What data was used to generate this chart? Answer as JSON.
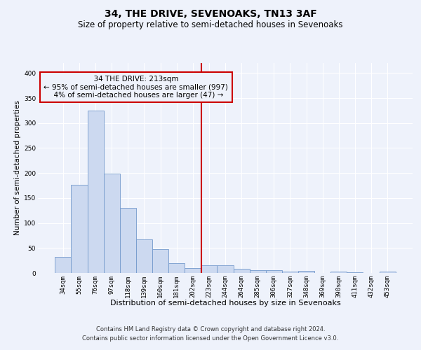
{
  "title": "34, THE DRIVE, SEVENOAKS, TN13 3AF",
  "subtitle": "Size of property relative to semi-detached houses in Sevenoaks",
  "xlabel": "Distribution of semi-detached houses by size in Sevenoaks",
  "ylabel": "Number of semi-detached properties",
  "bar_labels": [
    "34sqm",
    "55sqm",
    "76sqm",
    "97sqm",
    "118sqm",
    "139sqm",
    "160sqm",
    "181sqm",
    "202sqm",
    "223sqm",
    "244sqm",
    "264sqm",
    "285sqm",
    "306sqm",
    "327sqm",
    "348sqm",
    "369sqm",
    "390sqm",
    "411sqm",
    "432sqm",
    "453sqm"
  ],
  "bar_values": [
    32,
    177,
    325,
    199,
    130,
    67,
    48,
    20,
    10,
    15,
    15,
    9,
    6,
    5,
    3,
    4,
    0,
    3,
    2,
    0,
    3
  ],
  "bar_color": "#ccd9f0",
  "bar_edge_color": "#7399cc",
  "vline_pos": 8.52,
  "property_label": "34 THE DRIVE: 213sqm",
  "smaller_pct": "95%",
  "smaller_count": 997,
  "larger_pct": "4%",
  "larger_count": 47,
  "ylim_max": 420,
  "yticks": [
    0,
    50,
    100,
    150,
    200,
    250,
    300,
    350,
    400
  ],
  "footnote1": "Contains HM Land Registry data © Crown copyright and database right 2024.",
  "footnote2": "Contains public sector information licensed under the Open Government Licence v3.0.",
  "bg_color": "#eef2fb",
  "grid_color": "#ffffff",
  "vline_color": "#cc0000",
  "box_edge_color": "#cc0000",
  "title_fontsize": 10,
  "subtitle_fontsize": 8.5,
  "ylabel_fontsize": 7.5,
  "xlabel_fontsize": 8,
  "tick_fontsize": 6.5,
  "ann_fontsize": 7.5,
  "footnote_fontsize": 6
}
